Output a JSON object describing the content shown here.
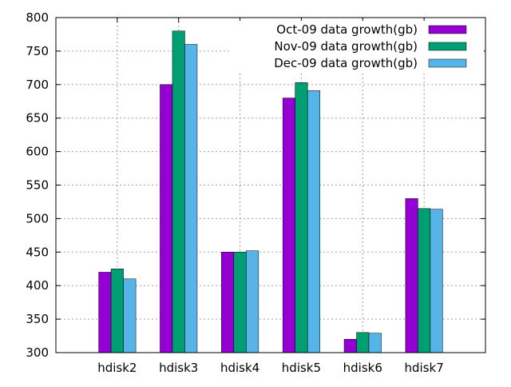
{
  "chart_data": {
    "type": "bar",
    "title": "",
    "xlabel": "",
    "ylabel": "",
    "categories": [
      "hdisk2",
      "hdisk3",
      "hdisk4",
      "hdisk5",
      "hdisk6",
      "hdisk7"
    ],
    "series": [
      {
        "name": "Oct-09 data growth(gb)",
        "color": "#9400d3",
        "values": [
          420,
          700,
          450,
          680,
          320,
          530
        ]
      },
      {
        "name": "Nov-09 data growth(gb)",
        "color": "#009e73",
        "values": [
          425,
          780,
          450,
          703,
          330,
          515
        ]
      },
      {
        "name": "Dec-09 data growth(gb)",
        "color": "#56b4e9",
        "values": [
          410,
          760,
          452,
          691,
          329,
          514
        ]
      }
    ],
    "ylim": [
      300,
      800
    ],
    "yticks": [
      300,
      350,
      400,
      450,
      500,
      550,
      600,
      650,
      700,
      750,
      800
    ],
    "grid": true,
    "legend_position": "top-right"
  }
}
